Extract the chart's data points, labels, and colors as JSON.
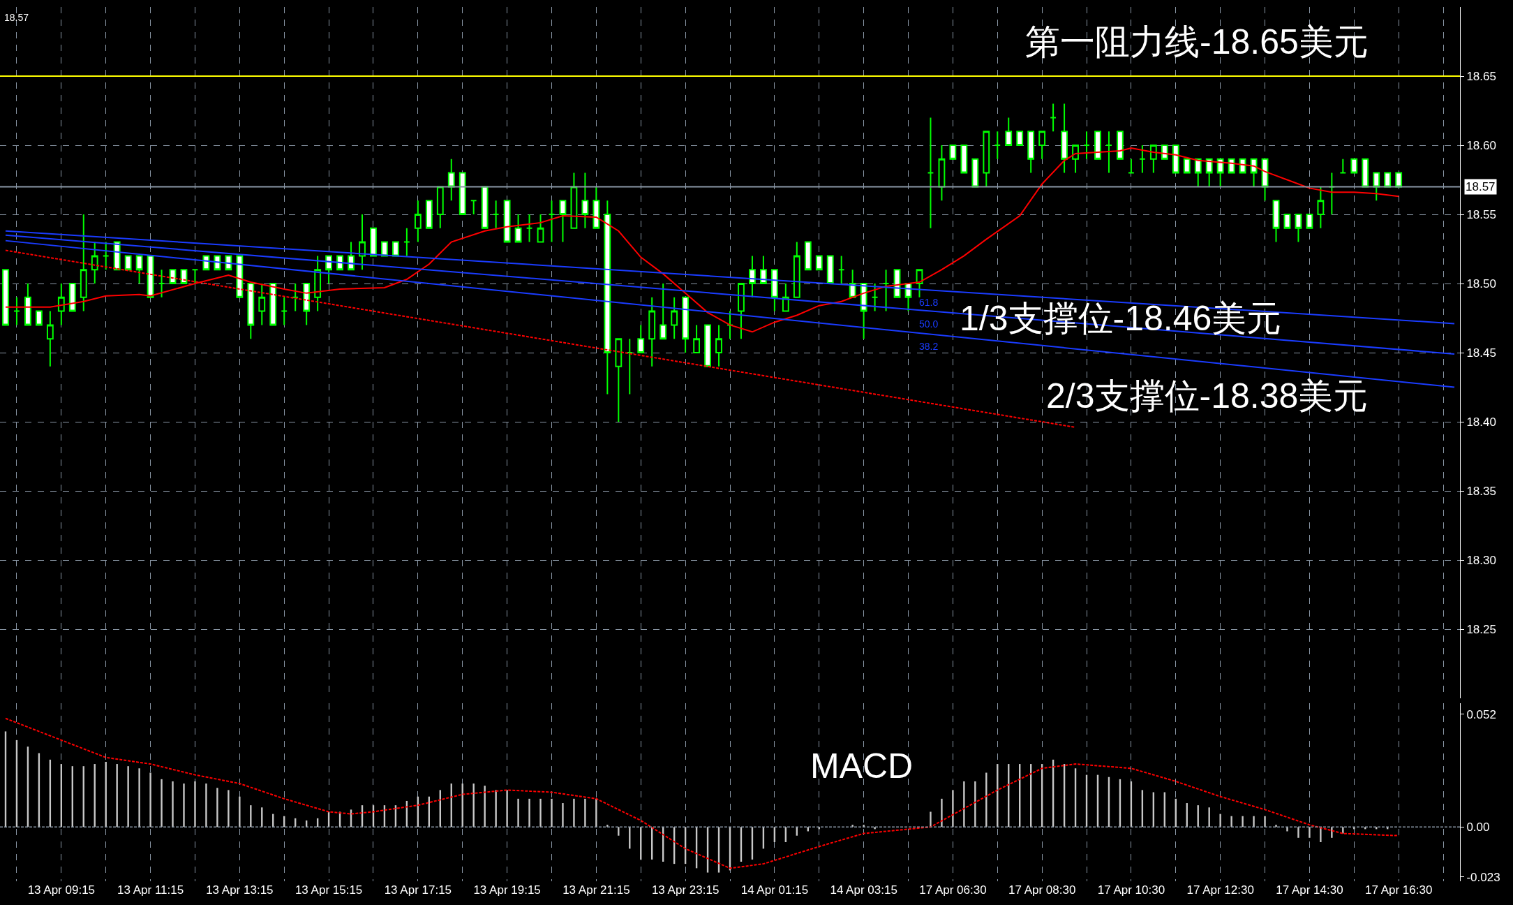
{
  "chart_data": [
    {
      "type": "candlestick",
      "color": "#00ff00",
      "categories": [
        null,
        null,
        null,
        null,
        null,
        null,
        null,
        null,
        null,
        null,
        null,
        null,
        null,
        null,
        null,
        null,
        null,
        null,
        null,
        null,
        null,
        null,
        null,
        null,
        null,
        null,
        null,
        null,
        null,
        null,
        null,
        null,
        null,
        null,
        null,
        null,
        null,
        null,
        null,
        null,
        null,
        null,
        null,
        null,
        null,
        null,
        null,
        null,
        null,
        null,
        null,
        null,
        null,
        null,
        null,
        null,
        null,
        null,
        null,
        null,
        null,
        null,
        null,
        null,
        null,
        null,
        null,
        null,
        null,
        null,
        null,
        null,
        null,
        null,
        null,
        null,
        null,
        null,
        null,
        null,
        null,
        null,
        null,
        null,
        null,
        null,
        null,
        null,
        null,
        null,
        null,
        null,
        null,
        null,
        null,
        null,
        null,
        null,
        null,
        null,
        null,
        null,
        null,
        null,
        null,
        null,
        null,
        null,
        null,
        null,
        null,
        null,
        null,
        null,
        null,
        null,
        null,
        null,
        null,
        null,
        null,
        null,
        null,
        null,
        null,
        null,
        null,
        null,
        null,
        null,
        null
      ],
      "ohlc": [
        [
          18.51,
          18.51,
          18.47,
          18.47
        ],
        [
          18.48,
          18.49,
          18.47,
          18.48
        ],
        [
          18.49,
          18.5,
          18.47,
          18.47
        ],
        [
          18.48,
          18.48,
          18.47,
          18.47
        ],
        [
          18.46,
          18.48,
          18.44,
          18.47
        ],
        [
          18.48,
          18.5,
          18.47,
          18.49
        ],
        [
          18.5,
          18.5,
          18.48,
          18.48
        ],
        [
          18.49,
          18.55,
          18.48,
          18.51
        ],
        [
          18.51,
          18.53,
          18.5,
          18.52
        ],
        [
          18.52,
          18.53,
          18.51,
          18.52
        ],
        [
          18.53,
          18.53,
          18.51,
          18.51
        ],
        [
          18.52,
          18.52,
          18.51,
          18.51
        ],
        [
          18.52,
          18.52,
          18.5,
          18.51
        ],
        [
          18.52,
          18.52,
          18.49,
          18.49
        ],
        [
          18.5,
          18.51,
          18.49,
          18.5
        ],
        [
          18.51,
          18.51,
          18.5,
          18.5
        ],
        [
          18.51,
          18.51,
          18.5,
          18.5
        ],
        [
          18.51,
          18.51,
          18.5,
          18.51
        ],
        [
          18.52,
          18.52,
          18.51,
          18.51
        ],
        [
          18.52,
          18.52,
          18.51,
          18.51
        ],
        [
          18.52,
          18.52,
          18.51,
          18.51
        ],
        [
          18.52,
          18.52,
          18.49,
          18.49
        ],
        [
          18.5,
          18.5,
          18.46,
          18.47
        ],
        [
          18.48,
          18.5,
          18.47,
          18.49
        ],
        [
          18.5,
          18.5,
          18.47,
          18.47
        ],
        [
          18.48,
          18.49,
          18.47,
          18.48
        ],
        [
          18.49,
          18.5,
          18.48,
          18.49
        ],
        [
          18.5,
          18.5,
          18.47,
          18.48
        ],
        [
          18.49,
          18.52,
          18.48,
          18.51
        ],
        [
          18.52,
          18.52,
          18.5,
          18.51
        ],
        [
          18.52,
          18.52,
          18.51,
          18.51
        ],
        [
          18.52,
          18.53,
          18.51,
          18.51
        ],
        [
          18.52,
          18.55,
          18.51,
          18.53
        ],
        [
          18.54,
          18.54,
          18.52,
          18.52
        ],
        [
          18.53,
          18.53,
          18.52,
          18.52
        ],
        [
          18.53,
          18.53,
          18.52,
          18.52
        ],
        [
          18.53,
          18.54,
          18.52,
          18.53
        ],
        [
          18.54,
          18.56,
          18.53,
          18.55
        ],
        [
          18.56,
          18.56,
          18.54,
          18.54
        ],
        [
          18.55,
          18.57,
          18.54,
          18.57
        ],
        [
          18.58,
          18.59,
          18.56,
          18.57
        ],
        [
          18.58,
          18.58,
          18.55,
          18.55
        ],
        [
          18.56,
          18.56,
          18.55,
          18.56
        ],
        [
          18.57,
          18.57,
          18.54,
          18.54
        ],
        [
          18.55,
          18.56,
          18.54,
          18.55
        ],
        [
          18.56,
          18.56,
          18.53,
          18.53
        ],
        [
          18.54,
          18.55,
          18.53,
          18.53
        ],
        [
          18.54,
          18.55,
          18.53,
          18.54
        ],
        [
          18.53,
          18.55,
          18.53,
          18.54
        ],
        [
          18.55,
          18.56,
          18.53,
          18.55
        ],
        [
          18.56,
          18.56,
          18.53,
          18.55
        ],
        [
          18.54,
          18.58,
          18.54,
          18.57
        ],
        [
          18.56,
          18.58,
          18.54,
          18.55
        ],
        [
          18.56,
          18.57,
          18.54,
          18.54
        ],
        [
          18.55,
          18.56,
          18.42,
          18.45
        ],
        [
          18.44,
          18.46,
          18.4,
          18.46
        ],
        [
          18.45,
          18.46,
          18.42,
          18.45
        ],
        [
          18.46,
          18.47,
          18.45,
          18.45
        ],
        [
          18.46,
          18.49,
          18.44,
          18.48
        ],
        [
          18.47,
          18.5,
          18.46,
          18.46
        ],
        [
          18.47,
          18.49,
          18.46,
          18.48
        ],
        [
          18.49,
          18.49,
          18.45,
          18.46
        ],
        [
          18.45,
          18.47,
          18.45,
          18.46
        ],
        [
          18.47,
          18.47,
          18.44,
          18.44
        ],
        [
          18.45,
          18.47,
          18.44,
          18.46
        ],
        [
          18.47,
          18.48,
          18.46,
          18.47
        ],
        [
          18.48,
          18.5,
          18.46,
          18.5
        ],
        [
          18.51,
          18.52,
          18.49,
          18.5
        ],
        [
          18.51,
          18.52,
          18.5,
          18.5
        ],
        [
          18.51,
          18.51,
          18.48,
          18.49
        ],
        [
          18.48,
          18.5,
          18.48,
          18.49
        ],
        [
          18.49,
          18.53,
          18.49,
          18.52
        ],
        [
          18.53,
          18.53,
          18.51,
          18.51
        ],
        [
          18.52,
          18.52,
          18.51,
          18.51
        ],
        [
          18.52,
          18.52,
          18.5,
          18.5
        ],
        [
          18.51,
          18.52,
          18.5,
          18.51
        ],
        [
          18.5,
          18.51,
          18.49,
          18.49
        ],
        [
          18.5,
          18.5,
          18.46,
          18.48
        ],
        [
          18.49,
          18.5,
          18.48,
          18.49
        ],
        [
          18.5,
          18.51,
          18.48,
          18.5
        ],
        [
          18.51,
          18.51,
          18.49,
          18.49
        ],
        [
          18.5,
          18.5,
          18.48,
          18.49
        ],
        [
          18.5,
          18.51,
          18.49,
          18.51
        ],
        [
          18.58,
          18.62,
          18.54,
          18.58
        ],
        [
          18.57,
          18.6,
          18.56,
          18.59
        ],
        [
          18.6,
          18.6,
          18.59,
          18.59
        ],
        [
          18.6,
          18.6,
          18.58,
          18.58
        ],
        [
          18.59,
          18.59,
          18.57,
          18.57
        ],
        [
          18.58,
          18.61,
          18.57,
          18.61
        ],
        [
          18.6,
          18.61,
          18.59,
          18.6
        ],
        [
          18.61,
          18.62,
          18.6,
          18.6
        ],
        [
          18.61,
          18.61,
          18.6,
          18.6
        ],
        [
          18.61,
          18.61,
          18.58,
          18.59
        ],
        [
          18.6,
          18.61,
          18.59,
          18.61
        ],
        [
          18.62,
          18.63,
          18.61,
          18.62
        ],
        [
          18.61,
          18.63,
          18.58,
          18.59
        ],
        [
          18.59,
          18.6,
          18.58,
          18.6
        ],
        [
          18.6,
          18.61,
          18.59,
          18.6
        ],
        [
          18.61,
          18.61,
          18.59,
          18.59
        ],
        [
          18.6,
          18.61,
          18.58,
          18.6
        ],
        [
          18.61,
          18.61,
          18.59,
          18.59
        ],
        [
          18.58,
          18.59,
          18.58,
          18.58
        ],
        [
          18.59,
          18.6,
          18.58,
          18.59
        ],
        [
          18.59,
          18.6,
          18.58,
          18.6
        ],
        [
          18.6,
          18.6,
          18.59,
          18.59
        ],
        [
          18.6,
          18.6,
          18.58,
          18.58
        ],
        [
          18.59,
          18.59,
          18.58,
          18.58
        ],
        [
          18.59,
          18.59,
          18.57,
          18.58
        ],
        [
          18.59,
          18.59,
          18.57,
          18.58
        ],
        [
          18.59,
          18.59,
          18.57,
          18.58
        ],
        [
          18.59,
          18.59,
          18.58,
          18.58
        ],
        [
          18.59,
          18.59,
          18.58,
          18.58
        ],
        [
          18.59,
          18.59,
          18.57,
          18.58
        ],
        [
          18.59,
          18.59,
          18.56,
          18.57
        ],
        [
          18.56,
          18.56,
          18.53,
          18.54
        ],
        [
          18.55,
          18.55,
          18.54,
          18.54
        ],
        [
          18.55,
          18.55,
          18.53,
          18.54
        ],
        [
          18.55,
          18.55,
          18.54,
          18.54
        ],
        [
          18.55,
          18.57,
          18.54,
          18.56
        ],
        [
          18.57,
          18.58,
          18.55,
          18.57
        ],
        [
          18.58,
          18.59,
          18.58,
          18.58
        ],
        [
          18.59,
          18.59,
          18.58,
          18.58
        ],
        [
          18.59,
          18.59,
          18.57,
          18.57
        ],
        [
          18.58,
          18.58,
          18.56,
          18.57
        ],
        [
          18.58,
          18.58,
          18.57,
          18.57
        ],
        [
          18.58,
          18.58,
          18.57,
          18.57
        ],
        null,
        null,
        null,
        null,
        null
      ],
      "series": [
        {
          "type": "line",
          "color": "#ff0000",
          "line_style": "solid",
          "values": [
            18.483,
            null,
            null,
            null,
            18.483,
            null,
            null,
            18.487,
            null,
            18.491,
            null,
            null,
            18.492,
            18.491,
            null,
            null,
            null,
            18.5,
            null,
            null,
            18.506,
            null,
            18.501,
            null,
            null,
            18.496,
            null,
            18.493,
            null,
            null,
            18.496,
            null,
            null,
            null,
            18.497,
            null,
            18.503,
            null,
            18.514,
            null,
            18.53,
            null,
            null,
            18.538,
            null,
            18.541,
            null,
            null,
            18.544,
            null,
            18.549,
            null,
            null,
            18.548,
            null,
            18.538,
            null,
            18.519,
            null,
            18.507,
            null,
            18.493,
            null,
            18.479,
            null,
            18.47,
            null,
            18.465,
            null,
            18.472,
            null,
            18.477,
            null,
            18.484,
            null,
            18.487,
            null,
            18.493,
            null,
            18.498,
            null,
            null,
            18.501,
            null,
            18.51,
            null,
            18.52,
            null,
            18.532,
            null,
            null,
            18.549,
            null,
            18.572,
            null,
            18.589,
            18.594,
            null,
            18.595,
            null,
            18.596,
            18.598,
            null,
            18.595,
            null,
            18.593,
            null,
            18.589,
            null,
            null,
            18.587,
            null,
            18.585,
            18.581,
            null,
            18.575,
            null,
            18.569,
            null,
            18.566,
            null,
            18.566,
            null,
            18.565,
            null,
            18.563,
            null,
            null,
            null,
            null,
            null
          ]
        },
        {
          "type": "line",
          "color": "#1a3cff",
          "line_style": "solid",
          "values": [
            18.538,
            null,
            null,
            null,
            null,
            null,
            null,
            null,
            null,
            null,
            null,
            null,
            null,
            null,
            null,
            null,
            null,
            null,
            null,
            null,
            null,
            null,
            null,
            null,
            null,
            null,
            null,
            null,
            null,
            null,
            null,
            null,
            null,
            null,
            null,
            null,
            null,
            null,
            null,
            null,
            null,
            null,
            null,
            null,
            null,
            null,
            null,
            null,
            null,
            null,
            null,
            null,
            null,
            null,
            null,
            null,
            null,
            null,
            null,
            null,
            null,
            null,
            null,
            null,
            null,
            null,
            null,
            null,
            null,
            null,
            null,
            null,
            null,
            null,
            null,
            null,
            null,
            null,
            null,
            null,
            null,
            null,
            null,
            null,
            null,
            null,
            null,
            null,
            null,
            null,
            null,
            null,
            null,
            null,
            null,
            null,
            null,
            null,
            null,
            null,
            null,
            null,
            null,
            null,
            null,
            null,
            null,
            null,
            null,
            null,
            null,
            null,
            null,
            null,
            null,
            null,
            null,
            null,
            null,
            null,
            null,
            null,
            null,
            null,
            null,
            null,
            null,
            null,
            null,
            null,
            18.471
          ]
        },
        {
          "type": "line",
          "color": "#1a3cff",
          "line_style": "solid",
          "values": [
            18.535,
            null,
            null,
            null,
            null,
            null,
            null,
            null,
            null,
            null,
            null,
            null,
            null,
            null,
            null,
            null,
            null,
            null,
            null,
            null,
            null,
            null,
            null,
            null,
            null,
            null,
            null,
            null,
            null,
            null,
            null,
            null,
            null,
            null,
            null,
            null,
            null,
            null,
            null,
            null,
            null,
            null,
            null,
            null,
            null,
            null,
            null,
            null,
            null,
            null,
            null,
            null,
            null,
            null,
            null,
            null,
            null,
            null,
            null,
            null,
            null,
            null,
            null,
            null,
            null,
            null,
            null,
            null,
            null,
            null,
            null,
            null,
            null,
            null,
            null,
            null,
            null,
            null,
            null,
            null,
            null,
            null,
            null,
            null,
            null,
            null,
            null,
            null,
            null,
            null,
            null,
            null,
            null,
            null,
            null,
            null,
            null,
            null,
            null,
            null,
            null,
            null,
            null,
            null,
            null,
            null,
            null,
            null,
            null,
            null,
            null,
            null,
            null,
            null,
            null,
            null,
            null,
            null,
            null,
            null,
            null,
            null,
            null,
            null,
            null,
            null,
            null,
            null,
            null,
            null,
            18.449
          ]
        },
        {
          "type": "line",
          "color": "#1a3cff",
          "line_style": "solid",
          "values": [
            18.531,
            null,
            null,
            null,
            null,
            null,
            null,
            null,
            null,
            null,
            null,
            null,
            null,
            null,
            null,
            null,
            null,
            null,
            null,
            null,
            null,
            null,
            null,
            null,
            null,
            null,
            null,
            null,
            null,
            null,
            null,
            null,
            null,
            null,
            null,
            null,
            null,
            null,
            null,
            null,
            null,
            null,
            null,
            null,
            null,
            null,
            null,
            null,
            null,
            null,
            null,
            null,
            null,
            null,
            null,
            null,
            null,
            null,
            null,
            null,
            null,
            null,
            null,
            null,
            null,
            null,
            null,
            null,
            null,
            null,
            null,
            null,
            null,
            null,
            null,
            null,
            null,
            null,
            null,
            null,
            null,
            null,
            null,
            null,
            null,
            null,
            null,
            null,
            null,
            null,
            null,
            null,
            null,
            null,
            null,
            null,
            null,
            null,
            null,
            null,
            null,
            null,
            null,
            null,
            null,
            null,
            null,
            null,
            null,
            null,
            null,
            null,
            null,
            null,
            null,
            null,
            null,
            null,
            null,
            null,
            null,
            null,
            null,
            null,
            null,
            null,
            null,
            null,
            null,
            null,
            18.425
          ]
        },
        {
          "type": "line",
          "color": "#ff0000",
          "line_style": "dashed",
          "values": [
            18.524,
            null,
            null,
            null,
            null,
            null,
            null,
            null,
            null,
            null,
            null,
            null,
            null,
            null,
            null,
            null,
            null,
            null,
            null,
            null,
            null,
            null,
            null,
            null,
            null,
            null,
            null,
            null,
            null,
            null,
            null,
            null,
            null,
            null,
            null,
            null,
            null,
            null,
            null,
            null,
            null,
            null,
            null,
            null,
            null,
            null,
            null,
            null,
            null,
            null,
            null,
            null,
            null,
            null,
            null,
            null,
            null,
            null,
            null,
            null,
            null,
            null,
            null,
            null,
            null,
            null,
            null,
            null,
            null,
            null,
            null,
            null,
            null,
            null,
            null,
            null,
            null,
            null,
            null,
            null,
            null,
            null,
            null,
            null,
            null,
            null,
            null,
            null,
            null,
            null,
            null,
            null,
            null,
            null,
            null,
            null,
            18.396,
            null,
            null,
            null,
            null,
            null,
            null,
            null,
            null,
            null,
            null,
            null,
            null,
            null,
            null,
            null,
            null,
            null,
            null,
            null,
            null,
            null,
            null,
            null,
            null,
            null,
            null,
            null,
            null,
            null,
            null,
            null,
            null,
            null,
            null
          ]
        }
      ],
      "ylim": [
        18.2,
        18.7
      ],
      "yticks": [
        18.25,
        {
          "value": 18.3,
          "label": "18.30"
        },
        18.35,
        {
          "value": 18.4,
          "label": "18.40"
        },
        18.45,
        {
          "value": 18.5,
          "label": "18.50"
        },
        18.55,
        {
          "value": 18.6,
          "label": "18.60"
        },
        18.65
      ],
      "tick_labels": "y",
      "grid": true,
      "ref_lines": [
        {
          "axis": "y",
          "value": 18.65,
          "label": "第一阻力线-18.65美元",
          "color": "#ffff00",
          "line_style": "solid"
        },
        {
          "axis": "y",
          "value": 18.57,
          "label": "18.57",
          "color": "#8a97a6",
          "line_style": "solid"
        }
      ],
      "annotations": [
        "18.57",
        "1/3支撑位-18.46美元",
        "2/3支撑位-18.38美元",
        "61.8",
        "50.0",
        "38.2"
      ]
    },
    {
      "type": "bar",
      "categories": [
        null,
        null,
        null,
        null,
        null,
        "13 Apr 09:15",
        null,
        null,
        null,
        null,
        null,
        null,
        null,
        "13 Apr 11:15",
        null,
        null,
        null,
        null,
        null,
        null,
        null,
        "13 Apr 13:15",
        null,
        null,
        null,
        null,
        null,
        null,
        null,
        "13 Apr 15:15",
        null,
        null,
        null,
        null,
        null,
        null,
        null,
        "13 Apr 17:15",
        null,
        null,
        null,
        null,
        null,
        null,
        null,
        "13 Apr 19:15",
        null,
        null,
        null,
        null,
        null,
        null,
        null,
        "13 Apr 21:15",
        null,
        null,
        null,
        null,
        null,
        null,
        null,
        "13 Apr 23:15",
        null,
        null,
        null,
        null,
        null,
        null,
        null,
        "14 Apr 01:15",
        null,
        null,
        null,
        null,
        null,
        null,
        null,
        "14 Apr 03:15",
        null,
        null,
        null,
        null,
        null,
        null,
        null,
        "17 Apr 06:30",
        null,
        null,
        null,
        null,
        null,
        null,
        null,
        "17 Apr 08:30",
        null,
        null,
        null,
        null,
        null,
        null,
        null,
        "17 Apr 10:30",
        null,
        null,
        null,
        null,
        null,
        null,
        null,
        "17 Apr 12:30",
        null,
        null,
        null,
        null,
        null,
        null,
        null,
        "17 Apr 14:30",
        null,
        null,
        null,
        null,
        null,
        null,
        null,
        "17 Apr 16:30",
        null,
        null,
        null,
        null,
        null
      ],
      "series": [
        {
          "type": "bar",
          "color": "#c8c8c8",
          "values": [
            0.044,
            0.04,
            0.037,
            0.034,
            0.031,
            0.029,
            0.028,
            0.028,
            0.029,
            0.03,
            0.029,
            0.028,
            0.027,
            0.025,
            0.022,
            0.021,
            0.02,
            0.021,
            0.02,
            0.018,
            0.017,
            0.014,
            0.01,
            0.009,
            0.006,
            0.005,
            0.004,
            0.003,
            0.004,
            0.007,
            0.007,
            0.008,
            0.01,
            0.01,
            0.01,
            0.01,
            0.012,
            0.014,
            0.014,
            0.017,
            0.02,
            0.02,
            0.02,
            0.019,
            0.017,
            0.017,
            0.013,
            0.013,
            0.013,
            0.013,
            0.011,
            0.013,
            0.013,
            0.013,
            0.001,
            -0.004,
            -0.01,
            -0.015,
            -0.015,
            -0.016,
            -0.017,
            -0.017,
            -0.019,
            -0.021,
            -0.021,
            -0.02,
            -0.016,
            -0.015,
            -0.01,
            -0.007,
            -0.007,
            -0.004,
            -0.002,
            -0.001,
            0,
            0,
            0.001,
            0.001,
            -0.001,
            0,
            0,
            0,
            0,
            0.007,
            0.013,
            0.017,
            0.021,
            0.021,
            0.025,
            0.029,
            0.029,
            0.029,
            0.029,
            0.029,
            0.031,
            0.029,
            0.027,
            0.024,
            0.024,
            0.023,
            0.022,
            0.021,
            0.017,
            0.016,
            0.016,
            0.013,
            0.011,
            0.01,
            0.009,
            0.006,
            0.005,
            0.005,
            0.005,
            0.005,
            0.001,
            -0.002,
            -0.005,
            -0.005,
            -0.007,
            -0.005,
            -0.003,
            -0.001,
            -0.001,
            -0.001,
            -0.001,
            0,
            null,
            null,
            null,
            null,
            null
          ]
        },
        {
          "type": "line",
          "color": "#ff0000",
          "line_style": "dashed",
          "values": [
            0.05,
            null,
            null,
            null,
            null,
            0.04,
            null,
            null,
            null,
            0.032,
            null,
            null,
            null,
            0.029,
            null,
            null,
            null,
            0.024,
            null,
            null,
            null,
            0.02,
            null,
            null,
            null,
            0.013,
            null,
            null,
            null,
            0.007,
            null,
            0.006,
            null,
            0.007,
            null,
            null,
            null,
            0.01,
            null,
            null,
            null,
            0.015,
            null,
            null,
            null,
            0.017,
            null,
            null,
            null,
            0.016,
            null,
            null,
            null,
            0.013,
            null,
            null,
            null,
            0.003,
            null,
            null,
            null,
            -0.01,
            null,
            null,
            null,
            -0.019,
            null,
            null,
            -0.017,
            null,
            null,
            null,
            null,
            -0.009,
            null,
            null,
            null,
            -0.003,
            null,
            null,
            null,
            -0.001,
            null,
            0,
            null,
            null,
            null,
            null,
            null,
            0.017,
            null,
            null,
            null,
            0.027,
            null,
            null,
            0.029,
            null,
            null,
            null,
            null,
            0.027,
            null,
            null,
            null,
            0.021,
            null,
            null,
            null,
            0.014,
            null,
            null,
            null,
            0.008,
            null,
            null,
            null,
            0.001,
            null,
            null,
            -0.003,
            null,
            null,
            null,
            null,
            -0.004,
            null,
            null,
            null,
            null,
            null
          ]
        }
      ],
      "ylim": [
        -0.025,
        0.057
      ],
      "yticks": [
        -0.023,
        {
          "value": 0,
          "label": "0.00"
        },
        0.052
      ],
      "grid": "x",
      "ref_lines": [
        {
          "axis": "y",
          "value": 0,
          "color": "#8a97a6",
          "line_style": "dashed"
        }
      ],
      "annotations": [
        "MACD"
      ]
    }
  ]
}
